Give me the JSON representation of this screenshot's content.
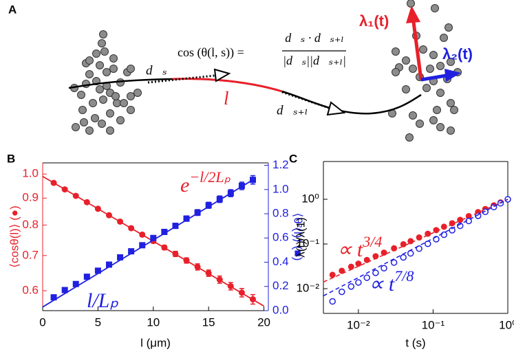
{
  "diagram": {
    "panel_label": "A",
    "equation": {
      "lhs": "cos (θ(l, s)) =",
      "numerator": "d⃗ₛ · d⃗ₛ₊ₗ",
      "denominator": "|d⃗ₛ||d⃗ₛ₊ₗ|"
    },
    "tangent_start": "d⃗ₛ",
    "tangent_end": "d⃗ₛ₊ₗ",
    "arc_length": "l",
    "eigen_1": "λ₁(t)",
    "eigen_2": "λ₂(t)"
  },
  "chart_data": [
    {
      "type": "scatter",
      "panel_label": "B",
      "x_label": "l (μm)",
      "y_label": "⟨cosθ(l)⟩ (●)",
      "y2_label": "⟨θ²(l)⟩ (■)",
      "y_color": "#e8202a",
      "y2_color": "#2020e0",
      "xlim": [
        0,
        20.4
      ],
      "xticks": [
        0,
        5,
        10,
        15,
        20
      ],
      "yscale": "log",
      "ylim": [
        0.55,
        1.05
      ],
      "yticks": [
        0.6,
        0.7,
        0.8,
        0.9,
        {
          "value": 1,
          "label": "1.0"
        }
      ],
      "y2lim": [
        0,
        1.22
      ],
      "y2ticks": [
        {
          "value": 0,
          "label": "0.0"
        },
        0.2,
        0.4,
        0.6,
        0.8,
        {
          "value": 1,
          "label": "1.0"
        },
        1.2
      ],
      "series": [
        {
          "marker": "circle",
          "color": "#e8202a",
          "x": [
            1,
            2,
            3,
            4,
            5,
            6,
            7,
            8,
            9,
            10,
            11,
            12,
            13,
            14,
            15,
            16,
            17,
            18,
            19
          ],
          "values": [
            0.962,
            0.935,
            0.909,
            0.884,
            0.859,
            0.835,
            0.812,
            0.789,
            0.767,
            0.746,
            0.725,
            0.705,
            0.685,
            0.666,
            0.648,
            0.63,
            0.612,
            0.595,
            0.578
          ],
          "errors": [
            0.004,
            0.004,
            0.004,
            0.005,
            0.005,
            0.005,
            0.006,
            0.006,
            0.006,
            0.007,
            0.007,
            0.008,
            0.008,
            0.009,
            0.009,
            0.01,
            0.01,
            0.011,
            0.012
          ]
        },
        {
          "marker": "line",
          "color": "#e8202a",
          "x": [
            0,
            20
          ],
          "values": [
            0.99,
            0.561
          ]
        },
        {
          "marker": "square",
          "color": "#2020e0",
          "axis": "y2",
          "x": [
            1,
            2,
            3,
            4,
            5,
            6,
            7,
            8,
            9,
            10,
            11,
            12,
            13,
            14,
            15,
            16,
            17,
            18,
            19
          ],
          "values": [
            0.11,
            0.17,
            0.22,
            0.28,
            0.33,
            0.38,
            0.44,
            0.49,
            0.54,
            0.6,
            0.65,
            0.7,
            0.76,
            0.81,
            0.87,
            0.92,
            0.97,
            1.03,
            1.08
          ],
          "errors": [
            0.01,
            0.01,
            0.01,
            0.012,
            0.012,
            0.014,
            0.015,
            0.016,
            0.017,
            0.018,
            0.02,
            0.021,
            0.022,
            0.024,
            0.025,
            0.027,
            0.029,
            0.031,
            0.035
          ]
        },
        {
          "marker": "line",
          "color": "#2020e0",
          "axis": "y2",
          "x": [
            0,
            19
          ],
          "values": [
            0.03,
            1.08
          ]
        }
      ],
      "annotations": [
        {
          "text": "e",
          "sup": "−l/2Lₚ",
          "color": "#e8202a"
        },
        {
          "text": "l/Lₚ",
          "sup": "",
          "color": "#2020e0"
        }
      ]
    },
    {
      "type": "scatter",
      "panel_label": "C",
      "x_label": "t (s)",
      "y_label": "λ(t)/λ(1)",
      "xscale": "log",
      "xlim": [
        0.0034,
        1
      ],
      "xticks": [
        {
          "value": 0.01,
          "label": "10⁻²"
        },
        {
          "value": 0.1,
          "label": "10⁻¹"
        },
        {
          "value": 1,
          "label": "10⁰"
        }
      ],
      "yscale": "log",
      "ylim": [
        0.0028,
        7
      ],
      "yticks": [
        {
          "value": 0.01,
          "label": "10⁻²"
        },
        {
          "value": 0.1,
          "label": "10⁻¹"
        },
        {
          "value": 1,
          "label": "10⁰"
        }
      ],
      "series": [
        {
          "marker": "circle",
          "color": "#e8202a",
          "x": [
            0.0045,
            0.006,
            0.008,
            0.01,
            0.013,
            0.017,
            0.022,
            0.03,
            0.04,
            0.05,
            0.065,
            0.085,
            0.11,
            0.14,
            0.18,
            0.23,
            0.3,
            0.4,
            0.5,
            0.65,
            0.8,
            1
          ],
          "values": [
            0.0204,
            0.0251,
            0.0309,
            0.0363,
            0.0439,
            0.0532,
            0.0641,
            0.08,
            0.0986,
            0.1157,
            0.1397,
            0.1694,
            0.204,
            0.243,
            0.291,
            0.347,
            0.42,
            0.517,
            0.607,
            0.733,
            0.851,
            1
          ]
        },
        {
          "marker": "open-circle",
          "color": "#2020e0",
          "x": [
            0.0045,
            0.006,
            0.008,
            0.01,
            0.013,
            0.017,
            0.022,
            0.03,
            0.04,
            0.05,
            0.065,
            0.085,
            0.11,
            0.14,
            0.18,
            0.23,
            0.3,
            0.4,
            0.5,
            0.65,
            0.8,
            1
          ],
          "values": [
            0.0052,
            0.0085,
            0.0112,
            0.0138,
            0.0176,
            0.0226,
            0.0287,
            0.0384,
            0.0501,
            0.0617,
            0.0787,
            0.101,
            0.128,
            0.161,
            0.203,
            0.255,
            0.327,
            0.427,
            0.525,
            0.67,
            0.813,
            1
          ]
        },
        {
          "marker": "dashed",
          "color": "#e8202a",
          "x": [
            0.0034,
            1
          ],
          "values": [
            0.0141,
            1
          ]
        },
        {
          "marker": "dashed",
          "color": "#2020e0",
          "x": [
            0.0034,
            1
          ],
          "values": [
            0.0069,
            1
          ]
        }
      ],
      "annotations": [
        {
          "text": "∝ t",
          "sup": "3/4",
          "color": "#e8202a"
        },
        {
          "text": "∝ t",
          "sup": "7/8",
          "color": "#2020e0"
        }
      ]
    }
  ]
}
